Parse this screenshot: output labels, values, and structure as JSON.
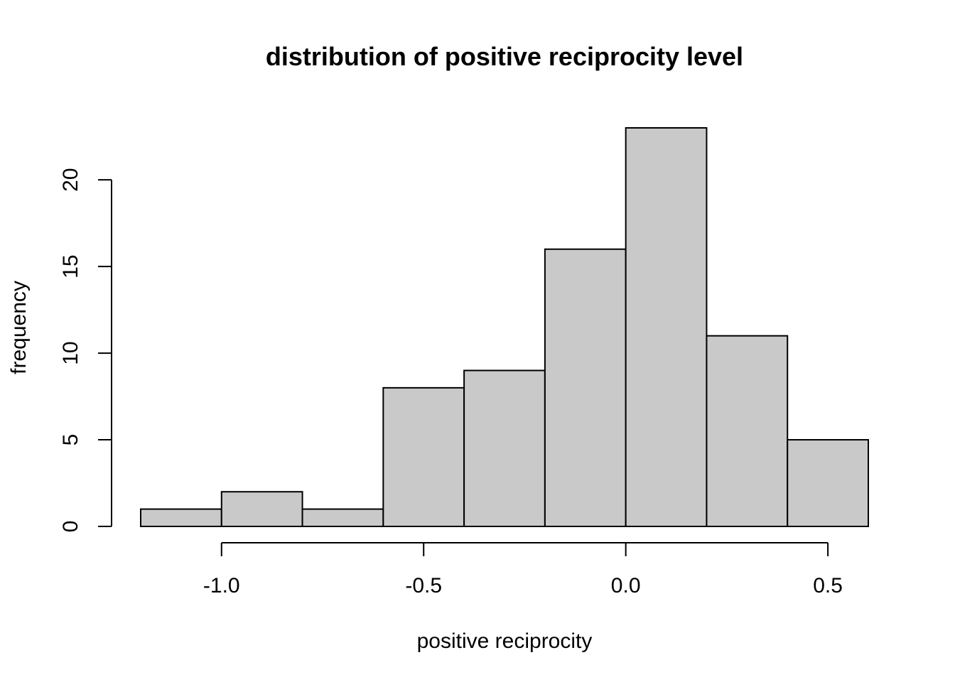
{
  "chart_data": {
    "type": "bar",
    "title": "distribution of positive reciprocity level",
    "xlabel": "positive reciprocity",
    "ylabel": "frequency",
    "bins": [
      {
        "x0": -1.2,
        "x1": -1.0,
        "count": 1
      },
      {
        "x0": -1.0,
        "x1": -0.8,
        "count": 2
      },
      {
        "x0": -0.8,
        "x1": -0.6,
        "count": 1
      },
      {
        "x0": -0.6,
        "x1": -0.4,
        "count": 8
      },
      {
        "x0": -0.4,
        "x1": -0.2,
        "count": 9
      },
      {
        "x0": -0.2,
        "x1": 0.0,
        "count": 16
      },
      {
        "x0": 0.0,
        "x1": 0.2,
        "count": 23
      },
      {
        "x0": 0.2,
        "x1": 0.4,
        "count": 11
      },
      {
        "x0": 0.4,
        "x1": 0.6,
        "count": 5
      }
    ],
    "xticks": [
      -1.0,
      -0.5,
      0.0,
      0.5
    ],
    "xtick_labels": [
      "-1.0",
      "-0.5",
      "0.0",
      "0.5"
    ],
    "yticks": [
      0,
      5,
      10,
      15,
      20
    ],
    "ytick_labels": [
      "0",
      "5",
      "10",
      "15",
      "20"
    ],
    "xlim": [
      -1.2,
      0.6
    ],
    "ylim": [
      0,
      23
    ],
    "grid": false,
    "legend": "none",
    "colors": {
      "bar_fill": "#c9c9c9",
      "bar_stroke": "#000000",
      "axis": "#000000"
    }
  }
}
